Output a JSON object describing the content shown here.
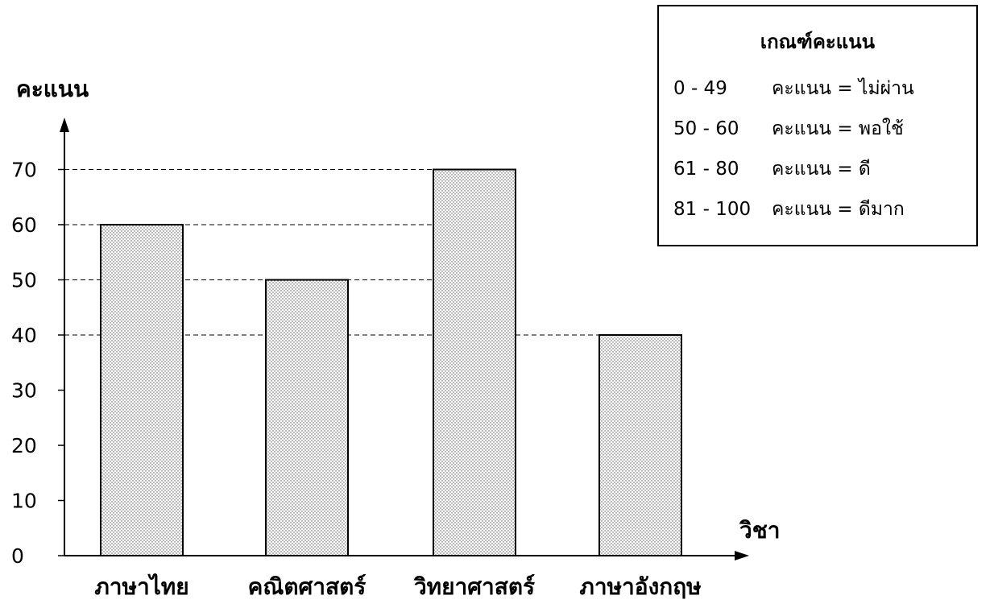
{
  "chart_data": {
    "type": "bar",
    "categories": [
      "ภาษาไทย",
      "คณิตศาสตร์",
      "วิทยาศาสตร์",
      "ภาษาอังกฤษ"
    ],
    "values": [
      60,
      50,
      70,
      40
    ],
    "title": "",
    "xlabel": "วิชา",
    "ylabel": "คะแนน",
    "ylim": [
      0,
      70
    ],
    "yticks": [
      0,
      10,
      20,
      30,
      40,
      50,
      60,
      70
    ],
    "reference_lines": [
      40,
      50,
      60,
      70
    ],
    "bar_fill": "dotted",
    "grid": false
  },
  "legend": {
    "title": "เกณฑ์คะแนน",
    "rows": [
      {
        "range": "0 - 49",
        "text": "คะแนน = ไม่ผ่าน"
      },
      {
        "range": "50 - 60",
        "text": "คะแนน = พอใช้"
      },
      {
        "range": "61 - 80",
        "text": "คะแนน = ดี"
      },
      {
        "range": "81 - 100",
        "text": "คะแนน = ดีมาก"
      }
    ]
  }
}
